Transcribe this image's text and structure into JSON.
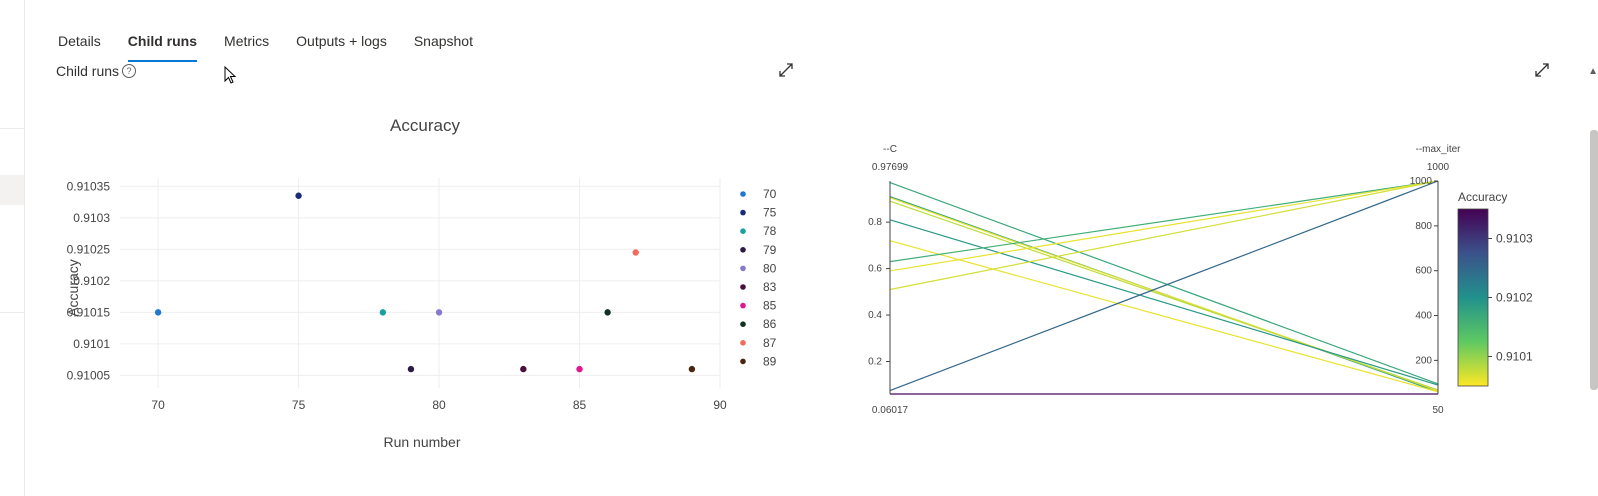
{
  "tabs": [
    {
      "label": "Details",
      "active": false
    },
    {
      "label": "Child runs",
      "active": true
    },
    {
      "label": "Metrics",
      "active": false
    },
    {
      "label": "Outputs + logs",
      "active": false
    },
    {
      "label": "Snapshot",
      "active": false
    }
  ],
  "section": {
    "title": "Child runs",
    "help": "?"
  },
  "icons": {
    "expand": "expand-diagonal-icon",
    "help": "question-circle-icon",
    "cursor": "mouse-pointer-icon"
  },
  "chart_data": [
    {
      "type": "scatter",
      "title": "Accuracy",
      "xlabel": "Run number",
      "ylabel": "Accuracy",
      "xlim": [
        69,
        90
      ],
      "ylim": [
        0.91003,
        0.91036
      ],
      "xticks": [
        "70",
        "75",
        "80",
        "85",
        "90"
      ],
      "yticks": [
        "0.91035",
        "0.9103",
        "0.91025",
        "0.9102",
        "0.91015",
        "0.9101",
        "0.91005"
      ],
      "grid": true,
      "legend_position": "right",
      "points": [
        {
          "name": "70",
          "x": 70,
          "y": 0.91015,
          "color": "#1f77d4"
        },
        {
          "name": "75",
          "x": 75,
          "y": 0.910335,
          "color": "#1a2b7a"
        },
        {
          "name": "78",
          "x": 78,
          "y": 0.91015,
          "color": "#17a2a2"
        },
        {
          "name": "79",
          "x": 79,
          "y": 0.91006,
          "color": "#2e1a47"
        },
        {
          "name": "80",
          "x": 80,
          "y": 0.91015,
          "color": "#8878d0"
        },
        {
          "name": "83",
          "x": 83,
          "y": 0.91006,
          "color": "#4a0f3a"
        },
        {
          "name": "85",
          "x": 85,
          "y": 0.91006,
          "color": "#e4168f"
        },
        {
          "name": "86",
          "x": 86,
          "y": 0.91015,
          "color": "#103020"
        },
        {
          "name": "87",
          "x": 87,
          "y": 0.910245,
          "color": "#f26b5b"
        },
        {
          "name": "89",
          "x": 89,
          "y": 0.91006,
          "color": "#4a2610"
        }
      ]
    },
    {
      "type": "parallel-coordinates",
      "axes": [
        {
          "label": "--C",
          "top": "0.97699",
          "bottom": "0.06017",
          "range": [
            0.06017,
            0.97699
          ],
          "ticks": [
            "0.8",
            "0.6",
            "0.4",
            "0.2"
          ]
        },
        {
          "label": "--max_iter",
          "top": "1000",
          "bottom": "50",
          "range": [
            50,
            1000
          ],
          "ticks": [
            "1000",
            "800",
            "600",
            "400",
            "200"
          ]
        }
      ],
      "colorbar": {
        "title": "Accuracy",
        "ticks": [
          "0.9103",
          "0.9102",
          "0.9101"
        ],
        "range": [
          0.91005,
          0.91035
        ]
      },
      "lines": [
        {
          "c": 0.97,
          "iter": 95,
          "acc": 0.91017
        },
        {
          "c": 0.91,
          "iter": 60,
          "acc": 0.91018
        },
        {
          "c": 0.905,
          "iter": 65,
          "acc": 0.91006
        },
        {
          "c": 0.89,
          "iter": 68,
          "acc": 0.91008
        },
        {
          "c": 0.81,
          "iter": 90,
          "acc": 0.91019
        },
        {
          "c": 0.72,
          "iter": 60,
          "acc": 0.91006
        },
        {
          "c": 0.63,
          "iter": 1000,
          "acc": 0.91016
        },
        {
          "c": 0.59,
          "iter": 1000,
          "acc": 0.91006
        },
        {
          "c": 0.51,
          "iter": 1000,
          "acc": 0.91007
        },
        {
          "c": 0.075,
          "iter": 1000,
          "acc": 0.91025
        },
        {
          "c": 0.06017,
          "iter": 50,
          "acc": 0.91034
        }
      ]
    }
  ]
}
